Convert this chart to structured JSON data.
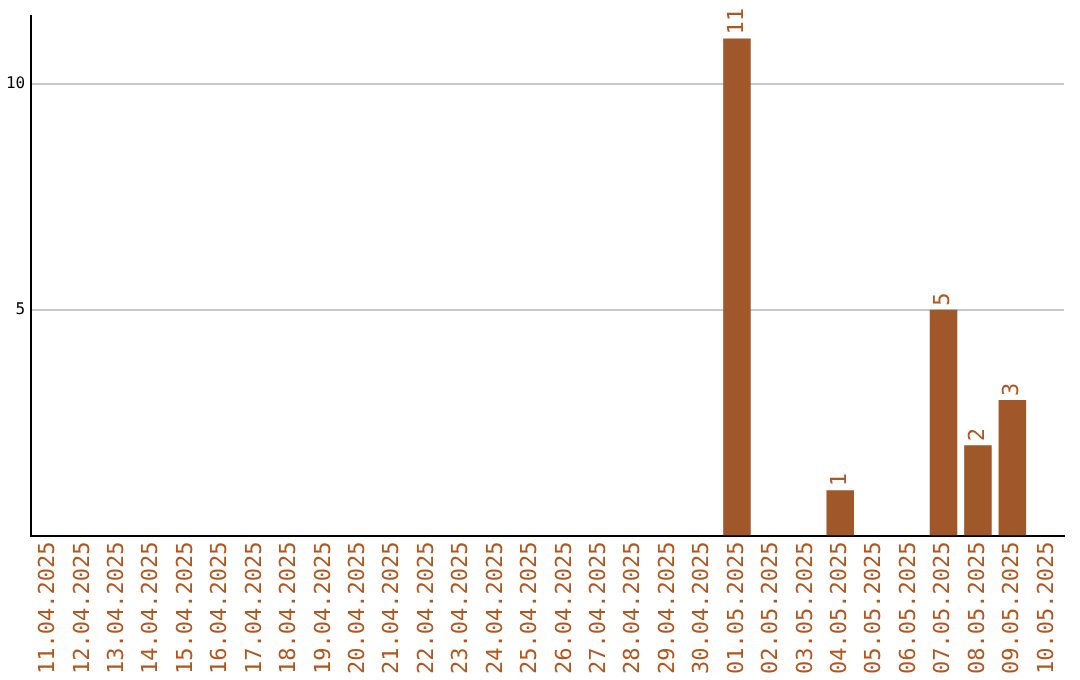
{
  "chart_data": {
    "type": "bar",
    "categories": [
      "11.04.2025",
      "12.04.2025",
      "13.04.2025",
      "14.04.2025",
      "15.04.2025",
      "16.04.2025",
      "17.04.2025",
      "18.04.2025",
      "19.04.2025",
      "20.04.2025",
      "21.04.2025",
      "22.04.2025",
      "23.04.2025",
      "24.04.2025",
      "25.04.2025",
      "26.04.2025",
      "27.04.2025",
      "28.04.2025",
      "29.04.2025",
      "30.04.2025",
      "01.05.2025",
      "02.05.2025",
      "03.05.2025",
      "04.05.2025",
      "05.05.2025",
      "06.05.2025",
      "07.05.2025",
      "08.05.2025",
      "09.05.2025",
      "10.05.2025"
    ],
    "values": [
      0,
      0,
      0,
      0,
      0,
      0,
      0,
      0,
      0,
      0,
      0,
      0,
      0,
      0,
      0,
      0,
      0,
      0,
      0,
      0,
      11,
      0,
      0,
      1,
      0,
      0,
      5,
      2,
      3,
      0
    ],
    "value_labels": [
      null,
      null,
      null,
      null,
      null,
      null,
      null,
      null,
      null,
      null,
      null,
      null,
      null,
      null,
      null,
      null,
      null,
      null,
      null,
      null,
      "11",
      null,
      null,
      "1",
      null,
      null,
      "5",
      "2",
      "3",
      null
    ],
    "color": "#a0582a",
    "ylim": [
      0,
      11.5
    ],
    "yticks": [
      5,
      10
    ],
    "grid": "y",
    "legend": false
  }
}
